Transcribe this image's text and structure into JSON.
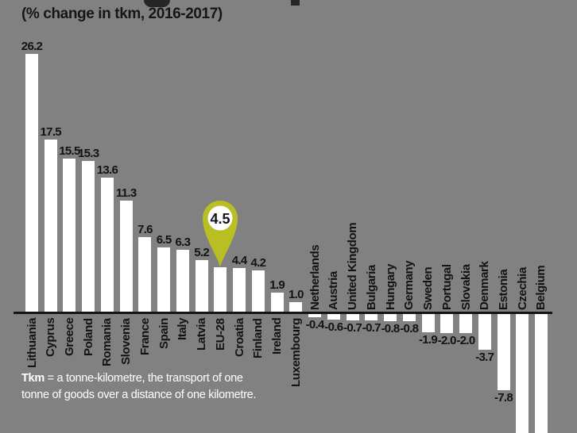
{
  "header": {
    "subtitle": "(% change in tkm, 2016-2017)",
    "note": "main title cropped out of frame at top edge"
  },
  "chart_data": {
    "type": "bar",
    "title": "",
    "subtitle": "(% change in tkm, 2016-2017)",
    "xlabel": "",
    "ylabel": "% change in tkm",
    "orientation": "vertical",
    "grid": false,
    "baseline": 0,
    "categories": [
      "Lithuania",
      "Cyprus",
      "Greece",
      "Poland",
      "Romania",
      "Slovenia",
      "France",
      "Spain",
      "Italy",
      "Latvia",
      "EU-28",
      "Croatia",
      "Finland",
      "Ireland",
      "Luxembourg",
      "Netherlands",
      "Austria",
      "United Kingdom",
      "Bulgaria",
      "Hungary",
      "Germany",
      "Sweden",
      "Portugal",
      "Slovakia",
      "Denmark",
      "Estonia",
      "Czechia",
      "Belgium"
    ],
    "values": [
      26.2,
      17.5,
      15.5,
      15.3,
      13.6,
      11.3,
      7.6,
      6.5,
      6.3,
      5.2,
      4.5,
      4.4,
      4.2,
      1.9,
      1.0,
      -0.4,
      -0.6,
      -0.7,
      -0.7,
      -0.8,
      -0.8,
      -1.9,
      -2.0,
      -2.0,
      -3.7,
      -7.8,
      null,
      null
    ],
    "value_labels": [
      "26.2",
      "17.5",
      "15.5",
      "15.3",
      "13.6",
      "11.3",
      "7.6",
      "6.5",
      "6.3",
      "5.2",
      "",
      "4.4",
      "4.2",
      "1.9",
      "1.0",
      "-0.4",
      "-0.6",
      "-0.7",
      "-0.7",
      "-0.8",
      "-0.8",
      "-1.9",
      "-2.0",
      "-2.0",
      "-3.7",
      "-7.8",
      "",
      ""
    ],
    "cutoff_categories": [
      "Czechia",
      "Belgium"
    ],
    "highlight": {
      "category": "EU-28",
      "value": 4.5,
      "value_label": "4.5",
      "marker": "map-pin",
      "color": "#b9be23"
    }
  },
  "footnote": {
    "term": "Tkm",
    "text": " = a tonne-kilometre, the transport of one tonne of goods over a distance of one kilometre."
  },
  "colors": {
    "background": "#818181",
    "bar": "#ffffff",
    "axis": "#151515",
    "label_text": "#131313",
    "footnote_text": "#ffffff",
    "pin": "#b9be23",
    "pin_inner": "#ffffff"
  }
}
